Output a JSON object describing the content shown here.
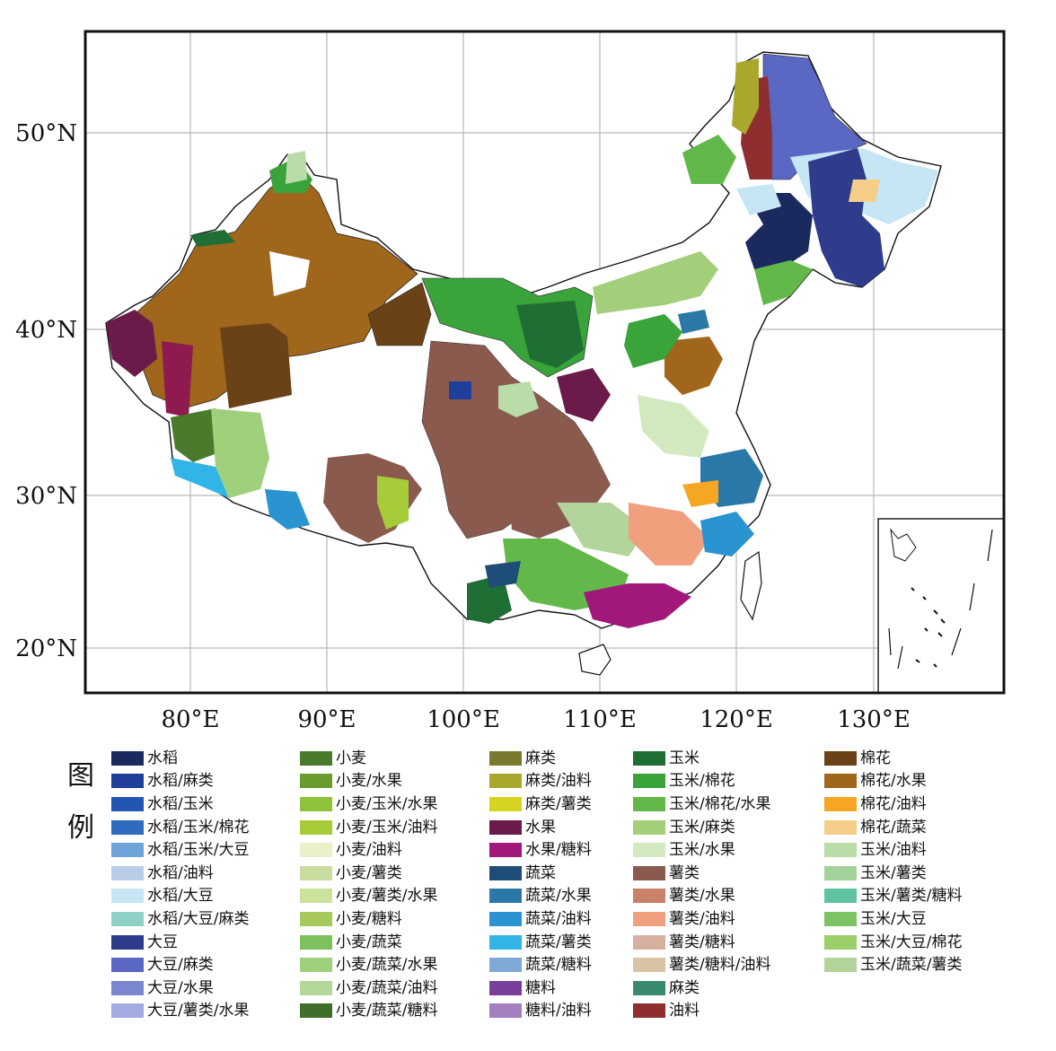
{
  "axes": {
    "x_ticks": [
      "80°E",
      "90°E",
      "100°E",
      "110°E",
      "120°E",
      "130°E"
    ],
    "y_ticks": [
      "50°N",
      "40°N",
      "30°N",
      "20°N"
    ]
  },
  "legend": {
    "title_chars": [
      "图",
      "例"
    ],
    "columns": [
      [
        {
          "label": "水稻",
          "color": "#1b2a5e"
        },
        {
          "label": "水稻/麻类",
          "color": "#1f3f9a"
        },
        {
          "label": "水稻/玉米",
          "color": "#2355b3"
        },
        {
          "label": "水稻/玉米/棉花",
          "color": "#2f6cc0"
        },
        {
          "label": "水稻/玉米/大豆",
          "color": "#6fa3dc"
        },
        {
          "label": "水稻/油料",
          "color": "#b9cdeb"
        },
        {
          "label": "水稻/大豆",
          "color": "#c6e6f5"
        },
        {
          "label": "水稻/大豆/麻类",
          "color": "#8fd1c7"
        },
        {
          "label": "大豆",
          "color": "#2f3c8c"
        },
        {
          "label": "大豆/麻类",
          "color": "#5a68c4"
        },
        {
          "label": "大豆/水果",
          "color": "#7b86d0"
        },
        {
          "label": "大豆/薯类/水果",
          "color": "#a2ace0"
        }
      ],
      [
        {
          "label": "小麦",
          "color": "#4a7a2c"
        },
        {
          "label": "小麦/水果",
          "color": "#6a9b2e"
        },
        {
          "label": "小麦/玉米/水果",
          "color": "#8fc23a"
        },
        {
          "label": "小麦/玉米/油料",
          "color": "#a6cc3a"
        },
        {
          "label": "小麦/油料",
          "color": "#e8f1c8"
        },
        {
          "label": "小麦/薯类",
          "color": "#c9dca0"
        },
        {
          "label": "小麦/薯类/水果",
          "color": "#cbe29a"
        },
        {
          "label": "小麦/糖料",
          "color": "#a5c95a"
        },
        {
          "label": "小麦/蔬菜",
          "color": "#7cc15e"
        },
        {
          "label": "小麦/蔬菜/水果",
          "color": "#9fd07b"
        },
        {
          "label": "小麦/蔬菜/油料",
          "color": "#b5d79a"
        },
        {
          "label": "小麦/蔬菜/糖料",
          "color": "#3f6d2a"
        }
      ],
      [
        {
          "label": "麻类",
          "color": "#7a7a2e"
        },
        {
          "label": "麻类/油料",
          "color": "#a8a82c"
        },
        {
          "label": "麻类/薯类",
          "color": "#d6d420"
        },
        {
          "label": "水果",
          "color": "#6b1a4a"
        },
        {
          "label": "水果/糖料",
          "color": "#a0187a"
        },
        {
          "label": "蔬菜",
          "color": "#1e4d78"
        },
        {
          "label": "蔬菜/水果",
          "color": "#2a78a8"
        },
        {
          "label": "蔬菜/油料",
          "color": "#2a94d0"
        },
        {
          "label": "蔬菜/薯类",
          "color": "#31b4e6"
        },
        {
          "label": "蔬菜/糖料",
          "color": "#7fa9d6"
        },
        {
          "label": "糖料",
          "color": "#7a3f9a"
        },
        {
          "label": "糖料/油料",
          "color": "#a47fc0"
        }
      ],
      [
        {
          "label": "玉米",
          "color": "#1f6e33"
        },
        {
          "label": "玉米/棉花",
          "color": "#3aa33a"
        },
        {
          "label": "玉米/棉花/水果",
          "color": "#63b84a"
        },
        {
          "label": "玉米/麻类",
          "color": "#a3cf7a"
        },
        {
          "label": "玉米/水果",
          "color": "#d3e9c0"
        },
        {
          "label": "薯类",
          "color": "#8b5a4e"
        },
        {
          "label": "薯类/水果",
          "color": "#c9816a"
        },
        {
          "label": "薯类/油料",
          "color": "#f0a07c"
        },
        {
          "label": "薯类/糖料",
          "color": "#d8b0a0"
        },
        {
          "label": "薯类/糖料/油料",
          "color": "#d8c3a5"
        },
        {
          "label": "麻类",
          "color": "#3a8a6e"
        },
        {
          "label": "油料",
          "color": "#8e2e2e"
        }
      ],
      [
        {
          "label": "棉花",
          "color": "#6b4218"
        },
        {
          "label": "棉花/水果",
          "color": "#a0661c"
        },
        {
          "label": "棉花/油料",
          "color": "#f5a623"
        },
        {
          "label": "棉花/蔬菜",
          "color": "#f5cf8a"
        },
        {
          "label": "玉米/油料",
          "color": "#b9dca8"
        },
        {
          "label": "玉米/薯类",
          "color": "#a3d39a"
        },
        {
          "label": "玉米/薯类/糖料",
          "color": "#5fc2a0"
        },
        {
          "label": "玉米/大豆",
          "color": "#7cc463"
        },
        {
          "label": "玉米/大豆/棉花",
          "color": "#9bcf6a"
        },
        {
          "label": "玉米/蔬菜/薯类",
          "color": "#b3d49a"
        }
      ]
    ]
  }
}
